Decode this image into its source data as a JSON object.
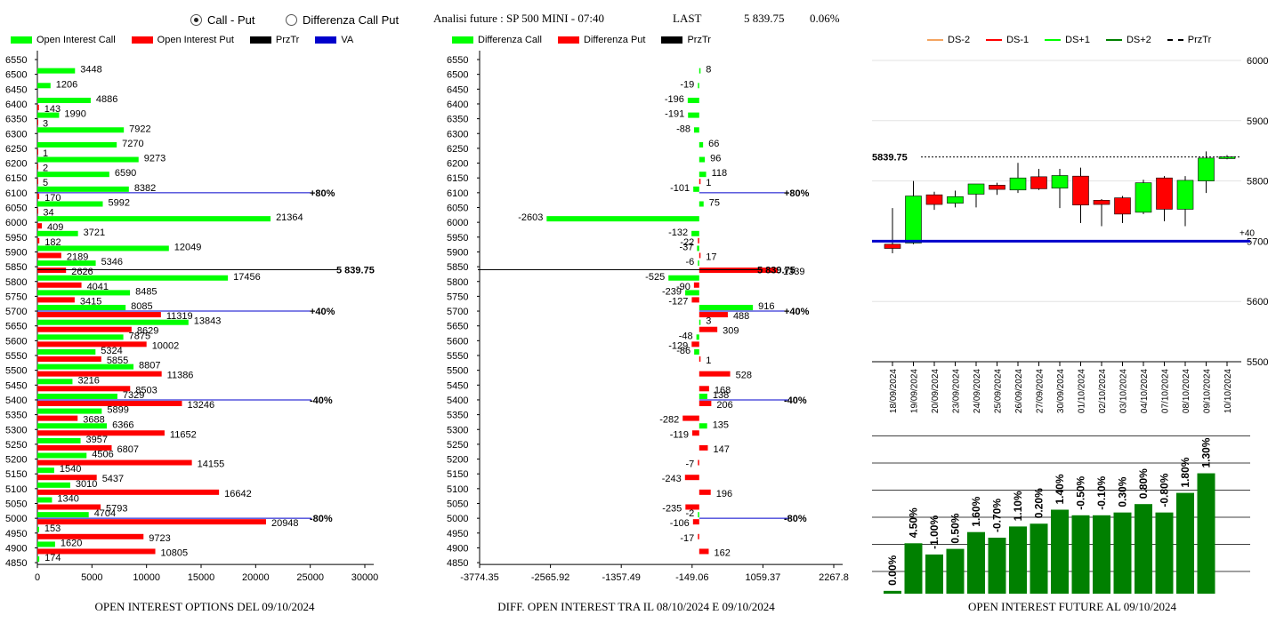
{
  "header": {
    "radio_call_put": "Call - Put",
    "radio_diff": "Differenza Call Put",
    "title": "Analisi future : SP 500 MINI - 07:40",
    "last_label": "LAST",
    "last_value": "5 839.75",
    "change": "0.06%"
  },
  "legend1": {
    "oi_call": "Open Interest Call",
    "oi_put": "Open Interest Put",
    "przTr": "PrzTr",
    "va": "VA"
  },
  "legend2": {
    "diff_call": "Differenza Call",
    "diff_put": "Differenza Put",
    "przTr": "PrzTr"
  },
  "legend3": {
    "ds_m2": "DS-2",
    "ds_m1": "DS-1",
    "ds_p1": "DS+1",
    "ds_p2": "DS+2",
    "przTr": "PrzTr"
  },
  "captions": {
    "c1": "OPEN INTEREST OPTIONS DEL 09/10/2024",
    "c2": "DIFF. OPEN INTEREST TRA IL 08/10/2024 E 09/10/2024",
    "c3": "OPEN INTEREST FUTURE AL 09/10/2024"
  },
  "colors": {
    "call": "#00ff00",
    "put": "#ff0000",
    "va": "#0000cc",
    "dark_green": "#008000",
    "ds_m2": "#f4a460",
    "ds_m1": "#ff0000",
    "ds_p1": "#00ff00",
    "ds_p2": "#008000"
  },
  "chart_data": [
    {
      "type": "bar",
      "orientation": "horizontal",
      "categories": [
        6550,
        6500,
        6450,
        6400,
        6350,
        6300,
        6250,
        6200,
        6150,
        6100,
        6050,
        6000,
        5950,
        5900,
        5850,
        5800,
        5750,
        5700,
        5650,
        5600,
        5550,
        5500,
        5450,
        5400,
        5350,
        5300,
        5250,
        5200,
        5150,
        5100,
        5050,
        5000,
        4950,
        4900,
        4850
      ],
      "series": [
        {
          "name": "Open Interest Call",
          "values": [
            null,
            3448,
            1206,
            4886,
            1990,
            7922,
            7270,
            9273,
            6590,
            8382,
            5992,
            21364,
            3721,
            12049,
            5346,
            17456,
            8485,
            8085,
            13843,
            7875,
            5324,
            8807,
            3216,
            7329,
            5899,
            6366,
            3957,
            4506,
            1540,
            3010,
            1340,
            4704,
            153,
            1620,
            174
          ]
        },
        {
          "name": "Open Interest Put",
          "values": [
            null,
            null,
            null,
            143,
            3,
            null,
            1,
            2,
            5,
            170,
            34,
            409,
            182,
            2189,
            2626,
            4041,
            3415,
            11319,
            8629,
            10002,
            5855,
            11386,
            8503,
            13246,
            3688,
            11652,
            6807,
            14155,
            5437,
            16642,
            5793,
            20948,
            9723,
            10805,
            null
          ]
        }
      ],
      "reference_lines": [
        {
          "label": "+80%",
          "level": 6100
        },
        {
          "label": "5 839.75",
          "level": 5839.75
        },
        {
          "label": "+40%",
          "level": 5700
        },
        {
          "label": "-40%",
          "level": 5400
        },
        {
          "label": "-80%",
          "level": 5000
        }
      ],
      "x_ticks": [
        0,
        5000,
        10000,
        15000,
        20000,
        25000,
        30000
      ],
      "xlim": [
        0,
        31000
      ]
    },
    {
      "type": "bar",
      "orientation": "horizontal",
      "categories": [
        6550,
        6500,
        6450,
        6400,
        6350,
        6300,
        6250,
        6200,
        6150,
        6100,
        6050,
        6000,
        5950,
        5900,
        5850,
        5800,
        5750,
        5700,
        5650,
        5600,
        5550,
        5500,
        5450,
        5400,
        5350,
        5300,
        5250,
        5200,
        5150,
        5100,
        5050,
        5000,
        4950,
        4900,
        4850
      ],
      "series": [
        {
          "name": "Differenza Call",
          "values": [
            null,
            8,
            -19,
            -196,
            -191,
            -88,
            66,
            96,
            118,
            -101,
            75,
            -2603,
            -132,
            -37,
            -6,
            -525,
            -239,
            916,
            3,
            -48,
            -86,
            null,
            null,
            138,
            null,
            135,
            null,
            null,
            null,
            null,
            null,
            -2,
            null,
            null,
            null
          ]
        },
        {
          "name": "Differenza Put",
          "values": [
            null,
            null,
            null,
            null,
            null,
            null,
            null,
            null,
            1,
            null,
            null,
            null,
            -22,
            17,
            1339,
            -90,
            -127,
            488,
            309,
            -129,
            1,
            528,
            168,
            206,
            -282,
            -119,
            147,
            -7,
            -243,
            196,
            -235,
            -106,
            -17,
            162,
            null
          ]
        }
      ],
      "reference_lines": [
        {
          "label": "+80%",
          "level": 6100
        },
        {
          "label": "5 839.75",
          "level": 5839.75
        },
        {
          "label": "+40%",
          "level": 5700
        },
        {
          "label": "-40%",
          "level": 5400
        },
        {
          "label": "-80%",
          "level": 5000
        }
      ],
      "x_ticks": [
        "-3774.35",
        "-2565.92",
        "-1357.49",
        "-149.06",
        "1059.37",
        "2267.8"
      ],
      "xlim": [
        -3774.35,
        2700
      ]
    },
    {
      "type": "candlestick",
      "dates": [
        "18/09/2024",
        "19/09/2024",
        "20/09/2024",
        "23/09/2024",
        "24/09/2024",
        "25/09/2024",
        "26/09/2024",
        "27/09/2024",
        "30/09/2024",
        "01/10/2024",
        "02/10/2024",
        "03/10/2024",
        "04/10/2024",
        "07/10/2024",
        "08/10/2024",
        "09/10/2024",
        "10/10/2024"
      ],
      "ohlc": [
        [
          5695,
          5755,
          5680,
          5688
        ],
        [
          5697,
          5800,
          5695,
          5775
        ],
        [
          5777,
          5782,
          5752,
          5761
        ],
        [
          5763,
          5784,
          5756,
          5774
        ],
        [
          5778,
          5794,
          5756,
          5795
        ],
        [
          5793,
          5797,
          5777,
          5786
        ],
        [
          5785,
          5830,
          5780,
          5805
        ],
        [
          5807,
          5820,
          5785,
          5787
        ],
        [
          5788,
          5820,
          5755,
          5809
        ],
        [
          5808,
          5822,
          5730,
          5760
        ],
        [
          5768,
          5770,
          5725,
          5761
        ],
        [
          5772,
          5775,
          5730,
          5745
        ],
        [
          5748,
          5802,
          5745,
          5797
        ],
        [
          5805,
          5808,
          5733,
          5753
        ],
        [
          5753,
          5808,
          5725,
          5801
        ],
        [
          5800,
          5849,
          5780,
          5838
        ],
        [
          5838,
          5843,
          5836,
          5840
        ]
      ],
      "y_ticks": [
        5500,
        5600,
        5700,
        5800,
        5900,
        6000
      ],
      "ylim": [
        5500,
        6000
      ],
      "last_label": "5839.75",
      "last_value": 5839.75,
      "va_level": 5700,
      "va_label": "+40"
    },
    {
      "type": "bar",
      "values": [
        0.5,
        9,
        7,
        8,
        11,
        10,
        12,
        12.5,
        15,
        14,
        14,
        14.5,
        16,
        14.5,
        18,
        21.5
      ],
      "labels": [
        "0.00%",
        "4.50%",
        "-1.00%",
        "0.50%",
        "1.60%",
        "-0.70%",
        "1.10%",
        "0.20%",
        "1.40%",
        "-0.50%",
        "-0.10%",
        "0.30%",
        "0.80%",
        "-0.80%",
        "1.80%",
        "1.30%"
      ]
    }
  ]
}
